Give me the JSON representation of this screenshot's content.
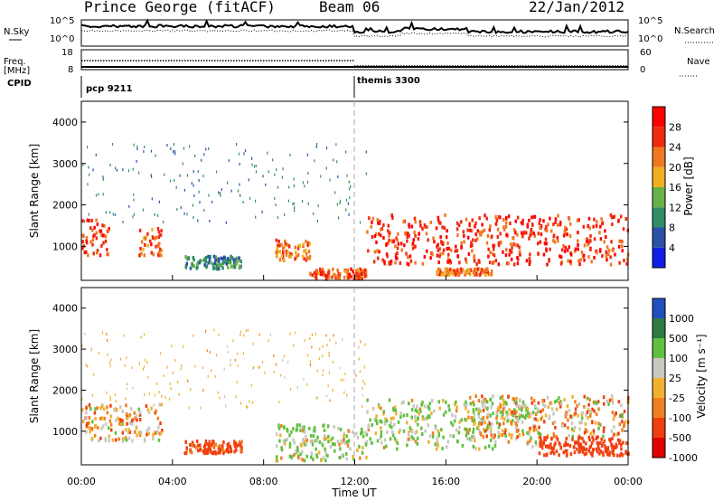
{
  "header": {
    "station": "Prince George (fitACF)",
    "beam": "Beam 06",
    "date": "22/Jan/2012"
  },
  "top_panels": {
    "nsky_label": "N.Sky",
    "nsearch_label": "N.Search",
    "left_tick_top": "10^5",
    "left_tick_bottom": "10^0",
    "right_tick_top": "10^5",
    "right_tick_bottom": "10^0",
    "freq_label": "Freq.",
    "freq_unit": "[MHz]",
    "freq_tick_top": "18",
    "freq_tick_bottom": "8",
    "nave_label": "Nave",
    "nave_tick_top": "60",
    "nave_tick_bottom": "0",
    "cpid_label": "CPID",
    "cpid_1": "pcp 9211",
    "cpid_2": "themis 3300"
  },
  "chart_data": [
    {
      "type": "heatmap",
      "quantity": "power",
      "ylabel": "Slant Range [km]",
      "ylim": [
        180,
        4500
      ],
      "yticks": [
        "1000",
        "2000",
        "3000",
        "4000"
      ],
      "colorbar_label": "Power [dB]",
      "colorbar_ticks": [
        "4",
        "8",
        "12",
        "16",
        "20",
        "24",
        "28"
      ],
      "colorbar_colors": [
        "#1020e6",
        "#2c50a8",
        "#2f8c66",
        "#6ab14a",
        "#f0b020",
        "#f07820",
        "#f02a10",
        "#ff0000"
      ],
      "scatter_regions": [
        {
          "t0": 0.0,
          "t1": 1.2,
          "r0": 800,
          "r1": 1700,
          "value": 26
        },
        {
          "t0": 2.5,
          "t1": 3.5,
          "r0": 800,
          "r1": 1500,
          "value": 24
        },
        {
          "t0": 4.5,
          "t1": 7.0,
          "r0": 500,
          "r1": 800,
          "value": 10
        },
        {
          "t0": 8.5,
          "t1": 10.0,
          "r0": 700,
          "r1": 1200,
          "value": 22
        },
        {
          "t0": 10.0,
          "t1": 12.5,
          "r0": 250,
          "r1": 500,
          "value": 24
        },
        {
          "t0": 12.5,
          "t1": 24.0,
          "r0": 600,
          "r1": 1800,
          "value": 26
        },
        {
          "t0": 15.5,
          "t1": 18.0,
          "r0": 350,
          "r1": 500,
          "value": 22
        }
      ]
    },
    {
      "type": "heatmap",
      "quantity": "velocity",
      "ylabel": "Slant Range [km]",
      "ylim": [
        180,
        4500
      ],
      "yticks": [
        "1000",
        "2000",
        "3000",
        "4000"
      ],
      "xlabel": "Time UT",
      "xticks": [
        "00:00",
        "04:00",
        "08:00",
        "12:00",
        "16:00",
        "20:00",
        "00:00"
      ],
      "xlim": [
        0,
        24
      ],
      "colorbar_label": "Velocity [m s⁻¹]",
      "colorbar_ticks": [
        "1000",
        "500",
        "100",
        "25",
        "-25",
        "-100",
        "-500",
        "-1000"
      ],
      "colorbar_colors": [
        "#2050c0",
        "#307a40",
        "#60c040",
        "#c8c8c0",
        "#f0b030",
        "#f08020",
        "#f04010",
        "#e00000"
      ],
      "scatter_regions": [
        {
          "t0": 0.0,
          "t1": 3.5,
          "r0": 800,
          "r1": 1700,
          "value": -25
        },
        {
          "t0": 4.5,
          "t1": 7.0,
          "r0": 500,
          "r1": 800,
          "value": -200
        },
        {
          "t0": 8.5,
          "t1": 12.5,
          "r0": 300,
          "r1": 1200,
          "value": 100
        },
        {
          "t0": 12.5,
          "t1": 20.0,
          "r0": 600,
          "r1": 1800,
          "value": 100
        },
        {
          "t0": 17.0,
          "t1": 24.0,
          "r0": 900,
          "r1": 1900,
          "value": 0
        },
        {
          "t0": 20.0,
          "t1": 24.0,
          "r0": 450,
          "r1": 900,
          "value": -300
        }
      ]
    }
  ]
}
